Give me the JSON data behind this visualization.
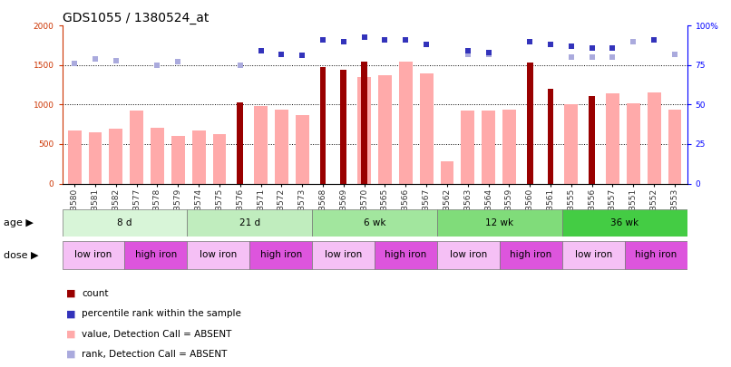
{
  "title": "GDS1055 / 1380524_at",
  "samples": [
    "GSM33580",
    "GSM33581",
    "GSM33582",
    "GSM33577",
    "GSM33578",
    "GSM33579",
    "GSM33574",
    "GSM33575",
    "GSM33576",
    "GSM33571",
    "GSM33572",
    "GSM33573",
    "GSM33568",
    "GSM33569",
    "GSM33570",
    "GSM33565",
    "GSM33566",
    "GSM33567",
    "GSM33562",
    "GSM33563",
    "GSM33564",
    "GSM33559",
    "GSM33560",
    "GSM33561",
    "GSM33555",
    "GSM33556",
    "GSM33557",
    "GSM33551",
    "GSM33552",
    "GSM33553"
  ],
  "count_values": [
    null,
    null,
    null,
    null,
    null,
    null,
    null,
    null,
    1030,
    null,
    null,
    null,
    1480,
    1440,
    1540,
    null,
    null,
    null,
    null,
    null,
    null,
    null,
    1530,
    1200,
    null,
    1110,
    null,
    null,
    null,
    null
  ],
  "pink_values": [
    670,
    650,
    700,
    920,
    710,
    600,
    670,
    630,
    null,
    980,
    940,
    870,
    null,
    null,
    1350,
    1370,
    1550,
    1390,
    280,
    930,
    920,
    940,
    null,
    null,
    1010,
    null,
    1140,
    1020,
    1150,
    940
  ],
  "blue_square_values": [
    null,
    null,
    null,
    null,
    null,
    null,
    null,
    null,
    null,
    84,
    82,
    81,
    91,
    90,
    93,
    91,
    91,
    88,
    null,
    84,
    83,
    null,
    90,
    88,
    87,
    86,
    86,
    null,
    91,
    null
  ],
  "light_blue_values": [
    76,
    79,
    78,
    null,
    75,
    77,
    null,
    null,
    75,
    null,
    null,
    null,
    null,
    null,
    null,
    null,
    null,
    null,
    null,
    82,
    82,
    null,
    null,
    null,
    80,
    80,
    80,
    90,
    null,
    82
  ],
  "age_groups": [
    {
      "label": "8 d",
      "start": 0,
      "end": 6,
      "color": "#d8f5d8"
    },
    {
      "label": "21 d",
      "start": 6,
      "end": 12,
      "color": "#c0edbe"
    },
    {
      "label": "6 wk",
      "start": 12,
      "end": 18,
      "color": "#a2e69e"
    },
    {
      "label": "12 wk",
      "start": 18,
      "end": 24,
      "color": "#80dc7a"
    },
    {
      "label": "36 wk",
      "start": 24,
      "end": 30,
      "color": "#44cc44"
    }
  ],
  "dose_groups": [
    {
      "label": "low iron",
      "start": 0,
      "end": 3,
      "color": "#f5c0f5"
    },
    {
      "label": "high iron",
      "start": 3,
      "end": 6,
      "color": "#dd66dd"
    },
    {
      "label": "low iron",
      "start": 6,
      "end": 9,
      "color": "#f5c0f5"
    },
    {
      "label": "high iron",
      "start": 9,
      "end": 12,
      "color": "#dd66dd"
    },
    {
      "label": "low iron",
      "start": 12,
      "end": 15,
      "color": "#f5c0f5"
    },
    {
      "label": "high iron",
      "start": 15,
      "end": 18,
      "color": "#dd66dd"
    },
    {
      "label": "low iron",
      "start": 18,
      "end": 21,
      "color": "#f5c0f5"
    },
    {
      "label": "high iron",
      "start": 21,
      "end": 24,
      "color": "#dd66dd"
    },
    {
      "label": "low iron",
      "start": 24,
      "end": 27,
      "color": "#f5c0f5"
    },
    {
      "label": "high iron",
      "start": 27,
      "end": 30,
      "color": "#dd66dd"
    }
  ],
  "ylim_left": [
    0,
    2000
  ],
  "ylim_right": [
    0,
    100
  ],
  "yticks_left": [
    0,
    500,
    1000,
    1500,
    2000
  ],
  "yticks_right": [
    0,
    25,
    50,
    75,
    100
  ],
  "bar_color_count": "#990000",
  "bar_color_pink": "#ffaaaa",
  "dot_color_blue": "#3333bb",
  "dot_color_lightblue": "#aaaadd",
  "title_fontsize": 10,
  "tick_fontsize": 6.5,
  "label_fontsize": 7.5,
  "row_label_fontsize": 8
}
